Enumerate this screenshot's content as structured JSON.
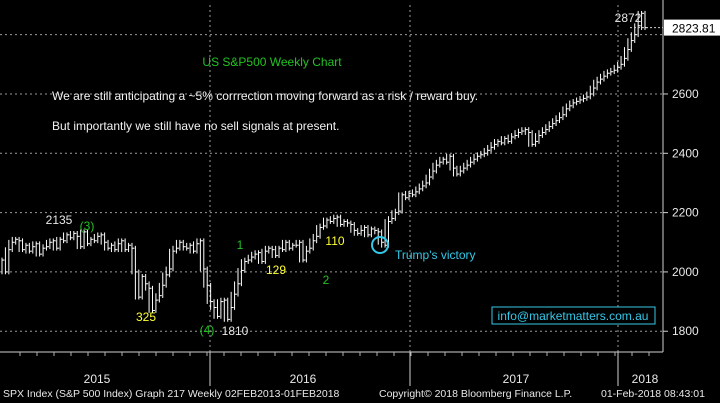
{
  "chart_data": {
    "type": "line",
    "title": "US S&P500 Weekly Chart",
    "notes": [
      "We are still anticipating a ~5% corrrection moving forward as a risk / reward buy.",
      "But importantly we still have no sell signals at present."
    ],
    "series": [
      {
        "values": [
          2040,
          2000,
          2075,
          2100,
          2110,
          2105,
          2075,
          2090,
          2070,
          2085,
          2095,
          2060,
          2080,
          2085,
          2100,
          2105,
          2080,
          2110,
          2105,
          2125,
          2115,
          2130,
          2120,
          2085,
          2135,
          2095,
          2110,
          2105,
          2120,
          2125,
          2100,
          2080,
          2090,
          2075,
          2095,
          2105,
          2075,
          2090,
          2080,
          2000,
          1915,
          1985,
          1960,
          1945,
          1870,
          1905,
          1920,
          1955,
          1990,
          2010,
          2070,
          2080,
          2100,
          2085,
          2080,
          2090,
          2070,
          2095,
          2105,
          2010,
          1955,
          1900,
          1880,
          1850,
          1900,
          1905,
          1840,
          1880,
          1925,
          1960,
          2005,
          2035,
          2040,
          2050,
          2060,
          2065,
          2035,
          2070,
          2080,
          2075,
          2055,
          2080,
          2075,
          2100,
          2080,
          2090,
          2090,
          2100,
          2040,
          2070,
          2080,
          2105,
          2120,
          2150,
          2155,
          2175,
          2170,
          2180,
          2185,
          2160,
          2170,
          2165,
          2160,
          2140,
          2130,
          2140,
          2150,
          2125,
          2145,
          2140,
          2135,
          2100,
          2090,
          2170,
          2180,
          2200,
          2205,
          2260,
          2250,
          2265,
          2260,
          2270,
          2280,
          2290,
          2300,
          2320,
          2340,
          2360,
          2370,
          2380,
          2370,
          2390,
          2350,
          2330,
          2340,
          2350,
          2360,
          2370,
          2380,
          2390,
          2395,
          2400,
          2410,
          2420,
          2430,
          2440,
          2435,
          2450,
          2440,
          2455,
          2460,
          2470,
          2475,
          2480,
          2470,
          2430,
          2440,
          2460,
          2470,
          2480,
          2490,
          2500,
          2510,
          2520,
          2530,
          2550,
          2560,
          2570,
          2575,
          2580,
          2585,
          2590,
          2600,
          2620,
          2640,
          2650,
          2660,
          2670,
          2675,
          2680,
          2690,
          2700,
          2720,
          2750,
          2780,
          2800,
          2830,
          2872,
          2823.81
        ]
      }
    ],
    "x_labels": [
      "2015",
      "2016",
      "2017",
      "2018"
    ],
    "ylim": [
      1730,
      2900
    ],
    "y_ticks": [
      1800,
      2000,
      2200,
      2400,
      2600
    ],
    "last_value": "2823.81",
    "annotations": [
      {
        "text": "2872",
        "color": "#e8e8e8"
      },
      {
        "text": "2135",
        "color": "#e8e8e8"
      },
      {
        "text": "(3)",
        "color": "#22c222"
      },
      {
        "text": "325",
        "color": "#ffff33"
      },
      {
        "text": "(4)",
        "color": "#22c222"
      },
      {
        "text": "1810",
        "color": "#e8e8e8"
      },
      {
        "text": "1",
        "color": "#22c222"
      },
      {
        "text": "129",
        "color": "#ffff33"
      },
      {
        "text": "2",
        "color": "#22c222"
      },
      {
        "text": "110",
        "color": "#ffff33"
      },
      {
        "text": "Trump's victory",
        "color": "#33c8e8"
      }
    ],
    "watermark": "info@marketmatters.com.au",
    "grid": true,
    "colors": {
      "background": "#000000",
      "line": "#ffffff",
      "title": "#22c222",
      "callout": "#33c8e8",
      "label": "#ffff33"
    }
  },
  "footer": {
    "left": "SPX Index (S&P 500 Index) Graph 217  Weekly 02FEB2013-01FEB2018",
    "middle": "Copyright© 2018 Bloomberg Finance L.P.",
    "right": "01-Feb-2018 08:43:01"
  }
}
